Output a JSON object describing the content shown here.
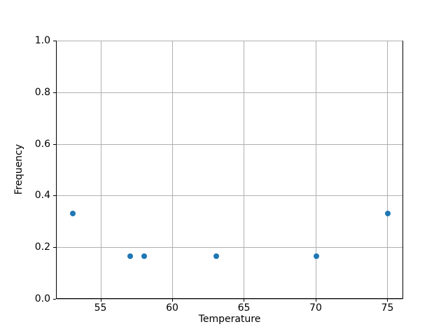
{
  "chart_data": {
    "type": "scatter",
    "title": "",
    "xlabel": "Temperature",
    "ylabel": "Frequency",
    "x": [
      53,
      57,
      58,
      63,
      70,
      75
    ],
    "y": [
      0.333,
      0.167,
      0.167,
      0.167,
      0.167,
      0.333
    ],
    "xlim": [
      51.9,
      76.1
    ],
    "ylim": [
      0.0,
      1.0
    ],
    "xticks": [
      55,
      60,
      65,
      70,
      75
    ],
    "xtick_labels": [
      "55",
      "60",
      "65",
      "70",
      "75"
    ],
    "yticks": [
      0.0,
      0.2,
      0.4,
      0.6,
      0.8,
      1.0
    ],
    "ytick_labels": [
      "0.0",
      "0.2",
      "0.4",
      "0.6",
      "0.8",
      "1.0"
    ],
    "grid": true,
    "legend_position": "none",
    "marker_color": "#1f77b4",
    "grid_color": "#b0b0b0",
    "spine_color": "#000000",
    "background_color": "#ffffff"
  }
}
